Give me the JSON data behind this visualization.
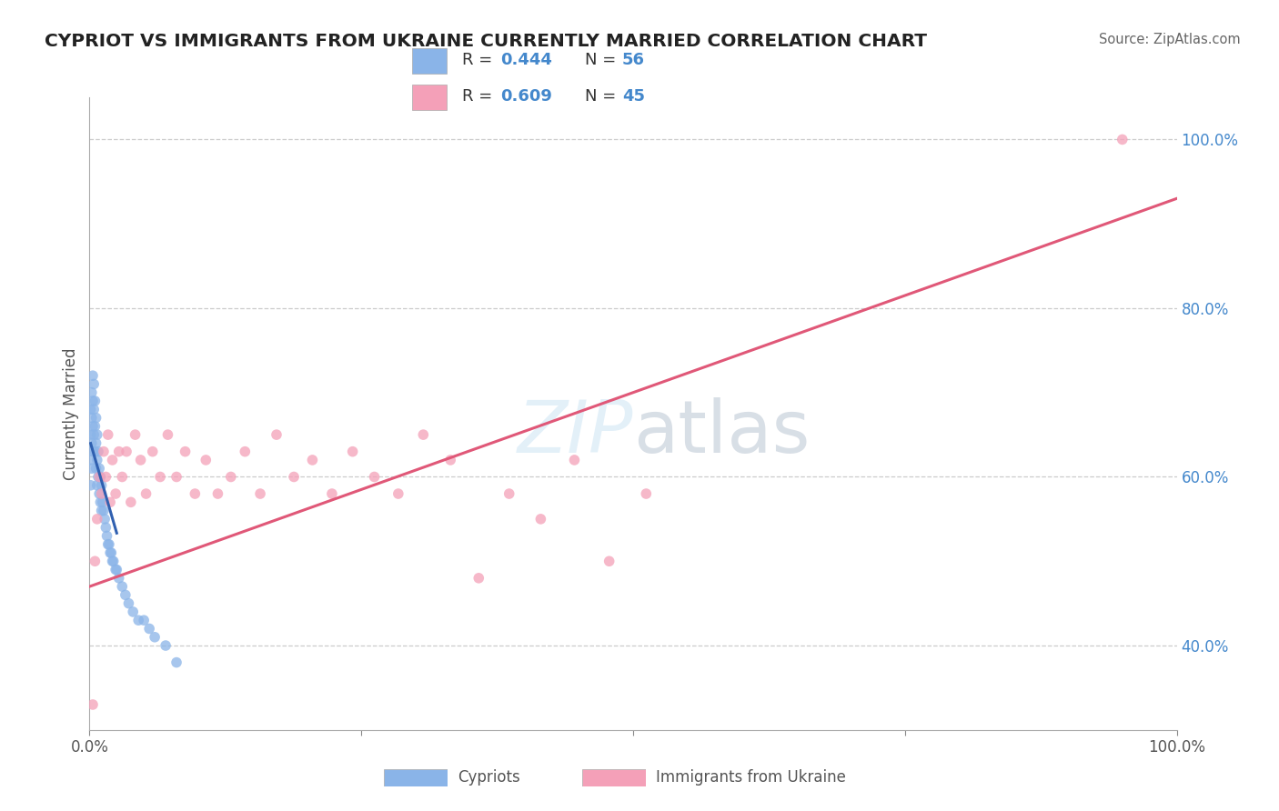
{
  "title": "CYPRIOT VS IMMIGRANTS FROM UKRAINE CURRENTLY MARRIED CORRELATION CHART",
  "source": "Source: ZipAtlas.com",
  "ylabel": "Currently Married",
  "xlim": [
    0.0,
    1.0
  ],
  "ylim": [
    0.3,
    1.05
  ],
  "x_ticks": [
    0.0,
    0.25,
    0.5,
    0.75,
    1.0
  ],
  "x_tick_labels": [
    "0.0%",
    "",
    "",
    "",
    "100.0%"
  ],
  "y_tick_vals_right": [
    0.4,
    0.6,
    0.8,
    1.0
  ],
  "y_tick_labels_right": [
    "40.0%",
    "60.0%",
    "80.0%",
    "100.0%"
  ],
  "cypriot_R": "0.444",
  "cypriot_N": "56",
  "ukraine_R": "0.609",
  "ukraine_N": "45",
  "cypriot_color": "#8ab4e8",
  "ukraine_color": "#f4a0b8",
  "cypriot_line_color": "#3060b0",
  "ukraine_line_color": "#e05878",
  "grid_color": "#cccccc",
  "bg_color": "#ffffff",
  "cypriot_x": [
    0.001,
    0.001,
    0.001,
    0.001,
    0.002,
    0.002,
    0.002,
    0.002,
    0.003,
    0.003,
    0.003,
    0.003,
    0.004,
    0.004,
    0.004,
    0.005,
    0.005,
    0.005,
    0.006,
    0.006,
    0.006,
    0.007,
    0.007,
    0.007,
    0.008,
    0.008,
    0.009,
    0.009,
    0.01,
    0.01,
    0.011,
    0.011,
    0.012,
    0.013,
    0.014,
    0.015,
    0.016,
    0.017,
    0.018,
    0.019,
    0.02,
    0.021,
    0.022,
    0.024,
    0.025,
    0.027,
    0.03,
    0.033,
    0.036,
    0.04,
    0.045,
    0.05,
    0.055,
    0.06,
    0.07,
    0.08
  ],
  "cypriot_y": [
    0.68,
    0.65,
    0.62,
    0.59,
    0.7,
    0.67,
    0.64,
    0.61,
    0.72,
    0.69,
    0.66,
    0.63,
    0.71,
    0.68,
    0.65,
    0.69,
    0.66,
    0.63,
    0.67,
    0.64,
    0.61,
    0.65,
    0.62,
    0.59,
    0.63,
    0.6,
    0.61,
    0.58,
    0.6,
    0.57,
    0.59,
    0.56,
    0.57,
    0.56,
    0.55,
    0.54,
    0.53,
    0.52,
    0.52,
    0.51,
    0.51,
    0.5,
    0.5,
    0.49,
    0.49,
    0.48,
    0.47,
    0.46,
    0.45,
    0.44,
    0.43,
    0.43,
    0.42,
    0.41,
    0.4,
    0.38
  ],
  "ukraine_x": [
    0.003,
    0.005,
    0.007,
    0.009,
    0.011,
    0.013,
    0.015,
    0.017,
    0.019,
    0.021,
    0.024,
    0.027,
    0.03,
    0.034,
    0.038,
    0.042,
    0.047,
    0.052,
    0.058,
    0.065,
    0.072,
    0.08,
    0.088,
    0.097,
    0.107,
    0.118,
    0.13,
    0.143,
    0.157,
    0.172,
    0.188,
    0.205,
    0.223,
    0.242,
    0.262,
    0.284,
    0.307,
    0.332,
    0.358,
    0.386,
    0.415,
    0.446,
    0.478,
    0.512,
    0.95
  ],
  "ukraine_y": [
    0.33,
    0.5,
    0.55,
    0.6,
    0.58,
    0.63,
    0.6,
    0.65,
    0.57,
    0.62,
    0.58,
    0.63,
    0.6,
    0.63,
    0.57,
    0.65,
    0.62,
    0.58,
    0.63,
    0.6,
    0.65,
    0.6,
    0.63,
    0.58,
    0.62,
    0.58,
    0.6,
    0.63,
    0.58,
    0.65,
    0.6,
    0.62,
    0.58,
    0.63,
    0.6,
    0.58,
    0.65,
    0.62,
    0.48,
    0.58,
    0.55,
    0.62,
    0.5,
    0.58,
    1.0
  ],
  "cypriot_line_x0": 0.0,
  "cypriot_line_x1": 0.025,
  "ukraine_line_x0": 0.0,
  "ukraine_line_x1": 1.0,
  "ukraine_line_y0": 0.47,
  "ukraine_line_y1": 0.93
}
